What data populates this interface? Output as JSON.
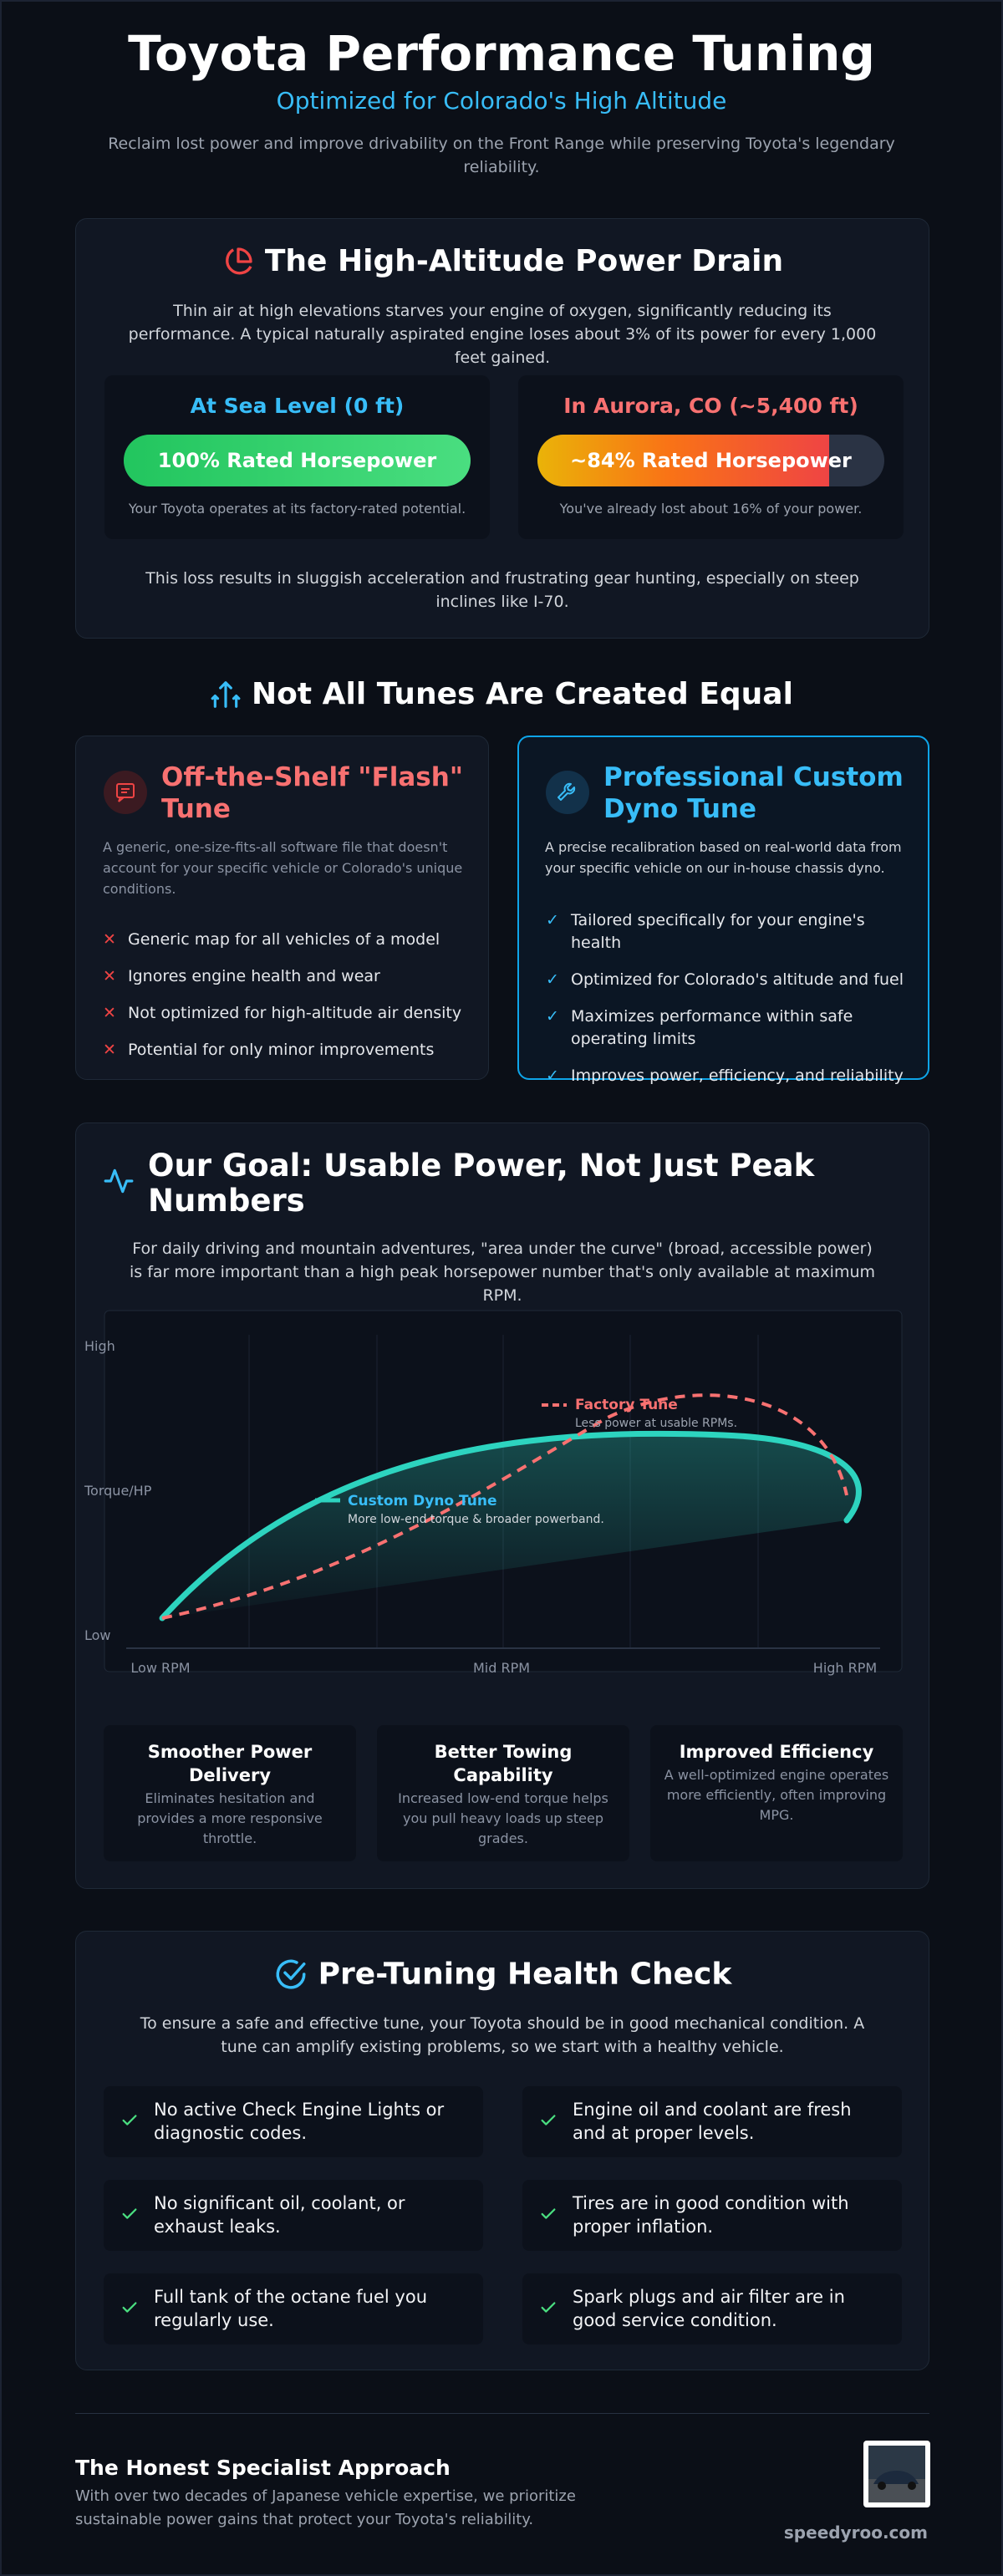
{
  "header": {
    "title": "Toyota Performance Tuning",
    "subtitle": "Optimized for Colorado's High Altitude",
    "description": "Reclaim lost power and improve drivability on the Front Range while preserving Toyota's legendary reliability."
  },
  "power_drain": {
    "title": "The High-Altitude Power Drain",
    "intro": "Thin air at high elevations starves your engine of oxygen, significantly reducing its performance. A typical naturally aspirated engine loses about 3% of its power for every 1,000 feet gained.",
    "sea_level": {
      "label": "At Sea Level (0 ft)",
      "bar": "100% Rated Horsepower",
      "percent": 100,
      "note": "Your Toyota operates at its factory-rated potential."
    },
    "aurora": {
      "label": "In Aurora, CO (~5,400 ft)",
      "bar": "~84% Rated Horsepower",
      "percent": 84,
      "note": "You've already lost about 16% of your power."
    },
    "conclusion": "This loss results in sluggish acceleration and frustrating gear hunting, especially on steep inclines like I-70."
  },
  "tunes": {
    "title": "Not All Tunes Are Created Equal",
    "flash": {
      "title": "Off-the-Shelf \"Flash\" Tune",
      "description": "A generic, one-size-fits-all software file that doesn't account for your specific vehicle or Colorado's unique conditions.",
      "items": [
        "Generic map for all vehicles of a model",
        "Ignores engine health and wear",
        "Not optimized for high-altitude air density",
        "Potential for only minor improvements"
      ]
    },
    "custom": {
      "title": "Professional Custom Dyno Tune",
      "description": "A precise recalibration based on real-world data from your specific vehicle on our in-house chassis dyno.",
      "items": [
        "Tailored specifically for your engine's health",
        "Optimized for Colorado's altitude and fuel",
        "Maximizes performance within safe operating limits",
        "Improves power, efficiency, and reliability"
      ]
    }
  },
  "goal": {
    "title": "Our Goal: Usable Power, Not Just Peak Numbers",
    "intro": "For daily driving and mountain adventures, \"area under the curve\" (broad, accessible power) is far more important than a high peak horsepower number that's only available at maximum RPM.",
    "chart": {
      "y_labels": [
        "High",
        "Torque/HP",
        "Low"
      ],
      "x_labels": [
        "Low RPM",
        "Mid RPM",
        "High RPM"
      ],
      "factory": {
        "name": "Factory Tune",
        "note": "Less power at usable RPMs."
      },
      "custom": {
        "name": "Custom Dyno Tune",
        "note": "More low-end torque & broader powerband."
      }
    },
    "benefits": [
      {
        "title": "Smoother Power Delivery",
        "text": "Eliminates hesitation and provides a more responsive throttle."
      },
      {
        "title": "Better Towing Capability",
        "text": "Increased low-end torque helps you pull heavy loads up steep grades."
      },
      {
        "title": "Improved Efficiency",
        "text": "A well-optimized engine operates more efficiently, often improving MPG."
      }
    ]
  },
  "health_check": {
    "title": "Pre-Tuning Health Check",
    "intro": "To ensure a safe and effective tune, your Toyota should be in good mechanical condition. A tune can amplify existing problems, so we start with a healthy vehicle.",
    "items": [
      "No active Check Engine Lights or diagnostic codes.",
      "Engine oil and coolant are fresh and at proper levels.",
      "No significant oil, coolant, or exhaust leaks.",
      "Tires are in good condition with proper inflation.",
      "Full tank of the octane fuel you regularly use.",
      "Spark plugs and air filter are in good service condition."
    ]
  },
  "footer": {
    "title": "The Honest Specialist Approach",
    "text": "With over two decades of Japanese vehicle expertise, we prioritize sustainable power gains that protect your Toyota's reliability.",
    "site": "speedyroo.com"
  }
}
